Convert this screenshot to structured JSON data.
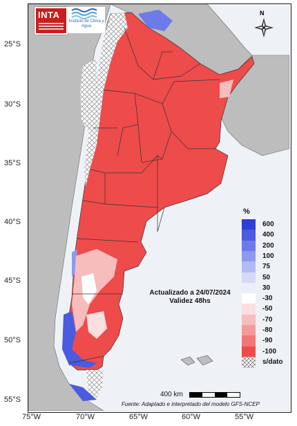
{
  "logos": {
    "inta": "INTA",
    "institute": "Instituto de Clima y Agua"
  },
  "north_label": "N",
  "lat_labels": [
    "25°S",
    "30°S",
    "35°S",
    "40°S",
    "45°S",
    "50°S",
    "55°S"
  ],
  "lon_labels": [
    "75°W",
    "70°W",
    "65°W",
    "60°W",
    "55°W"
  ],
  "legend": {
    "unit": "%",
    "items": [
      {
        "label": "600",
        "color": "#2d3fd6"
      },
      {
        "label": "400",
        "color": "#4a5be0"
      },
      {
        "label": "200",
        "color": "#6c7be8"
      },
      {
        "label": "100",
        "color": "#8d99ef"
      },
      {
        "label": "75",
        "color": "#b3bbf5"
      },
      {
        "label": "50",
        "color": "#d5d9fa"
      },
      {
        "label": "30",
        "color": "#eceefd"
      },
      {
        "label": "-30",
        "color": "#ffffff"
      },
      {
        "label": "-50",
        "color": "#fbdede"
      },
      {
        "label": "-70",
        "color": "#f7bcbc"
      },
      {
        "label": "-80",
        "color": "#f49a9a"
      },
      {
        "label": "-90",
        "color": "#f07878"
      },
      {
        "label": "-100",
        "color": "#ee4b4b"
      },
      {
        "label": "s/dato",
        "color": "hatch"
      }
    ]
  },
  "annotation": {
    "line1": "Actualizado a 24/07/2024",
    "line2": "Validez 48hs"
  },
  "scale": {
    "label": "400 km"
  },
  "source": "Fuente: Adaptado e interpretado del modelo GFS-NCEP",
  "colors": {
    "ocean": "#eef2f7",
    "neighbor_land": "#bdbdbd",
    "deficit_red": "#ee4b4b",
    "no_data_hatch": "#9a9a9a",
    "excess_blue": "#4a5be0"
  }
}
